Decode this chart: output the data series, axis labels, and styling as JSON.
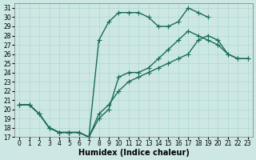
{
  "xlabel": "Humidex (Indice chaleur)",
  "ylabel": "",
  "xlim": [
    -0.5,
    23.5
  ],
  "ylim": [
    17,
    31.5
  ],
  "xticks": [
    0,
    1,
    2,
    3,
    4,
    5,
    6,
    7,
    8,
    9,
    10,
    11,
    12,
    13,
    14,
    15,
    16,
    17,
    18,
    19,
    20,
    21,
    22,
    23
  ],
  "yticks": [
    17,
    18,
    19,
    20,
    21,
    22,
    23,
    24,
    25,
    26,
    27,
    28,
    29,
    30,
    31
  ],
  "bg_color": "#cde8e4",
  "line_color": "#1a6b5a",
  "grid_color": "#b0d8d0",
  "line1_x": [
    0,
    1,
    2,
    3,
    4,
    5,
    6,
    7,
    8,
    9,
    10,
    11,
    12,
    13,
    14,
    15,
    16,
    17,
    18,
    19,
    20,
    21,
    22,
    23
  ],
  "line1_y": [
    20.5,
    20.5,
    19.5,
    18.0,
    17.5,
    17.5,
    17.5,
    17.0,
    19.0,
    20.0,
    23.5,
    24.0,
    24.0,
    24.5,
    25.5,
    26.5,
    27.5,
    28.5,
    28.0,
    27.5,
    27.0,
    26.0,
    25.5,
    25.5
  ],
  "line2_x": [
    0,
    1,
    2,
    3,
    4,
    5,
    6,
    7,
    8,
    9,
    10,
    11,
    12,
    13,
    14,
    15,
    16,
    17,
    18,
    19
  ],
  "line2_y": [
    20.5,
    20.5,
    19.5,
    18.0,
    17.5,
    17.5,
    17.5,
    17.0,
    27.5,
    29.5,
    30.5,
    30.5,
    30.5,
    30.0,
    29.0,
    29.0,
    29.5,
    31.0,
    30.5,
    30.0
  ],
  "line3_x": [
    0,
    1,
    2,
    3,
    4,
    5,
    6,
    7,
    8,
    9,
    10,
    11,
    12,
    13,
    14,
    15,
    16,
    17,
    18,
    19,
    20,
    21,
    22,
    23
  ],
  "line3_y": [
    20.5,
    20.5,
    19.5,
    18.0,
    17.5,
    17.5,
    17.5,
    17.0,
    19.5,
    20.5,
    22.0,
    23.0,
    23.5,
    24.0,
    24.5,
    25.0,
    25.5,
    26.0,
    27.5,
    28.0,
    27.5,
    26.0,
    25.5,
    25.5
  ],
  "marker_size": 2.5,
  "line_width": 1.0,
  "tick_fontsize": 5.5,
  "label_fontsize": 7
}
